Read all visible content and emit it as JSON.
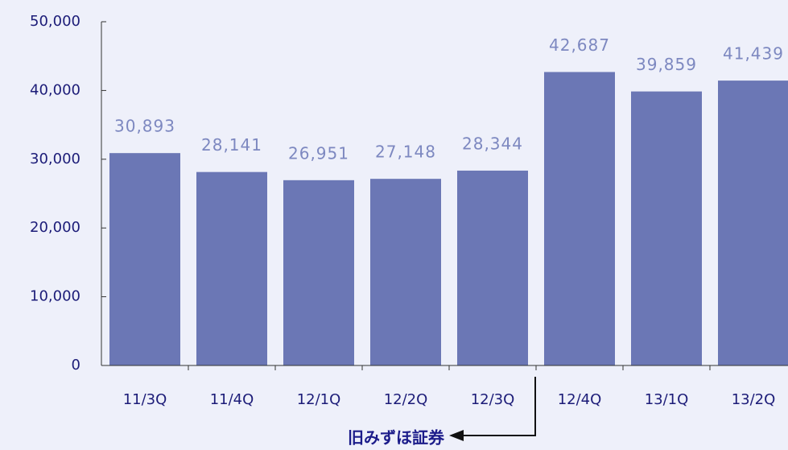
{
  "chart_data": {
    "type": "bar",
    "categories": [
      "11/3Q",
      "11/4Q",
      "12/1Q",
      "12/2Q",
      "12/3Q",
      "12/4Q",
      "13/1Q",
      "13/2Q"
    ],
    "values": [
      30893,
      28141,
      26951,
      27148,
      28344,
      42687,
      39859,
      41439
    ],
    "value_labels": [
      "30,893",
      "28,141",
      "26,951",
      "27,148",
      "28,344",
      "42,687",
      "39,859",
      "41,439"
    ],
    "color": "#6b77b5",
    "ylim": [
      0,
      50000
    ],
    "yticks": [
      0,
      {
        "value": 10000,
        "label": "10,000"
      },
      {
        "value": 20000,
        "label": "20,000"
      },
      {
        "value": 30000,
        "label": "30,000"
      },
      {
        "value": 40000,
        "label": "40,000"
      },
      {
        "value": 50000,
        "label": "50,000"
      }
    ],
    "grid": false,
    "annotation": "旧みずほ証券"
  }
}
